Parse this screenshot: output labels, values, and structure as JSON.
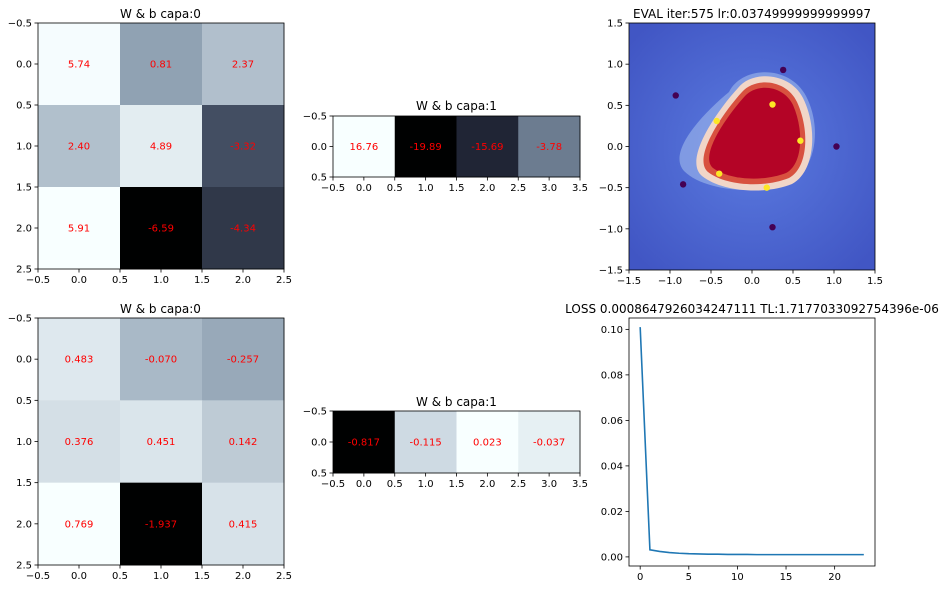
{
  "chart_data": [
    {
      "type": "heatmap",
      "title": "W & b capa:0",
      "values": [
        [
          5.74,
          0.81,
          2.37
        ],
        [
          2.4,
          4.89,
          -3.32
        ],
        [
          5.91,
          -6.59,
          -4.34
        ]
      ],
      "labels": [
        [
          "5.74",
          "0.81",
          "2.37"
        ],
        [
          "2.40",
          "4.89",
          "-3.32"
        ],
        [
          "5.91",
          "-6.59",
          "-4.34"
        ]
      ],
      "xlim": [
        -0.5,
        2.5
      ],
      "ylim": [
        2.5,
        -0.5
      ],
      "xticks": [
        "−0.5",
        "0.0",
        "0.5",
        "1.0",
        "1.5",
        "2.0",
        "2.5"
      ],
      "yticks": [
        "−0.5",
        "0.0",
        "0.5",
        "1.0",
        "1.5",
        "2.0",
        "2.5"
      ],
      "colormap": "bone"
    },
    {
      "type": "heatmap",
      "title": "W & b capa:1",
      "values": [
        [
          16.76,
          -19.89,
          -15.69,
          -3.78
        ]
      ],
      "labels": [
        [
          "16.76",
          "-19.89",
          "-15.69",
          "-3.78"
        ]
      ],
      "xlim": [
        -0.5,
        3.5
      ],
      "ylim": [
        0.5,
        -0.5
      ],
      "xticks": [
        "−0.5",
        "0.0",
        "0.5",
        "1.0",
        "1.5",
        "2.0",
        "2.5",
        "3.0",
        "3.5"
      ],
      "yticks": [
        "−0.5",
        "0.0",
        "0.5"
      ],
      "colormap": "bone"
    },
    {
      "type": "heatmap",
      "title": "EVAL iter:575 lr:0.03749999999999997",
      "xlim": [
        -1.5,
        1.5
      ],
      "ylim": [
        -1.5,
        1.5
      ],
      "xticks": [
        "−1.5",
        "−1.0",
        "−0.5",
        "0.0",
        "0.5",
        "1.0",
        "1.5"
      ],
      "yticks": [
        "−1.5",
        "−1.0",
        "−0.5",
        "0.0",
        "0.5",
        "1.0",
        "1.5"
      ],
      "colormap": "coolwarm",
      "points_class1": [
        [
          -0.43,
          0.31
        ],
        [
          0.25,
          0.51
        ],
        [
          0.59,
          0.07
        ],
        [
          -0.4,
          -0.33
        ],
        [
          0.18,
          -0.5
        ]
      ],
      "points_class0": [
        [
          -0.93,
          0.62
        ],
        [
          0.38,
          0.93
        ],
        [
          1.03,
          0.0
        ],
        [
          -0.84,
          -0.46
        ],
        [
          0.25,
          -0.98
        ]
      ]
    },
    {
      "type": "heatmap",
      "title": "W & b capa:0",
      "values": [
        [
          0.483,
          -0.07,
          -0.257
        ],
        [
          0.376,
          0.451,
          0.142
        ],
        [
          0.769,
          -1.937,
          0.415
        ]
      ],
      "labels": [
        [
          "0.483",
          "-0.070",
          "-0.257"
        ],
        [
          "0.376",
          "0.451",
          "0.142"
        ],
        [
          "0.769",
          "-1.937",
          "0.415"
        ]
      ],
      "xlim": [
        -0.5,
        2.5
      ],
      "ylim": [
        2.5,
        -0.5
      ],
      "xticks": [
        "−0.5",
        "0.0",
        "0.5",
        "1.0",
        "1.5",
        "2.0",
        "2.5"
      ],
      "yticks": [
        "−0.5",
        "0.0",
        "0.5",
        "1.0",
        "1.5",
        "2.0",
        "2.5"
      ],
      "colormap": "bone"
    },
    {
      "type": "heatmap",
      "title": "W & b capa:1",
      "values": [
        [
          -0.817,
          -0.115,
          0.023,
          -0.037
        ]
      ],
      "labels": [
        [
          "-0.817",
          "-0.115",
          "0.023",
          "-0.037"
        ]
      ],
      "xlim": [
        -0.5,
        3.5
      ],
      "ylim": [
        0.5,
        -0.5
      ],
      "xticks": [
        "−0.5",
        "0.0",
        "0.5",
        "1.0",
        "1.5",
        "2.0",
        "2.5",
        "3.0",
        "3.5"
      ],
      "yticks": [
        "−0.5",
        "0.0",
        "0.5"
      ],
      "colormap": "bone"
    },
    {
      "type": "line",
      "title": "LOSS 0.0008647926034247111 TL:1.7177033092754396e-06",
      "x": [
        0,
        1,
        2,
        3,
        4,
        5,
        6,
        7,
        8,
        9,
        10,
        11,
        12,
        13,
        14,
        15,
        16,
        17,
        18,
        19,
        20,
        21,
        22,
        23
      ],
      "y": [
        0.101,
        0.0031,
        0.0024,
        0.0019,
        0.0016,
        0.0014,
        0.0013,
        0.0012,
        0.0012,
        0.0011,
        0.0011,
        0.0011,
        0.001,
        0.001,
        0.001,
        0.001,
        0.001,
        0.001,
        0.001,
        0.001,
        0.001,
        0.001,
        0.001,
        0.001
      ],
      "xlim": [
        -1.15,
        24.15
      ],
      "ylim": [
        -0.004,
        0.105
      ],
      "xticks": [
        0,
        5,
        10,
        15,
        20
      ],
      "yticks": [
        0.0,
        0.02,
        0.04,
        0.06,
        0.08,
        0.1
      ],
      "ytick_labels": [
        "0.00",
        "0.02",
        "0.04",
        "0.06",
        "0.08",
        "0.10"
      ],
      "color": "#1f77b4"
    }
  ]
}
